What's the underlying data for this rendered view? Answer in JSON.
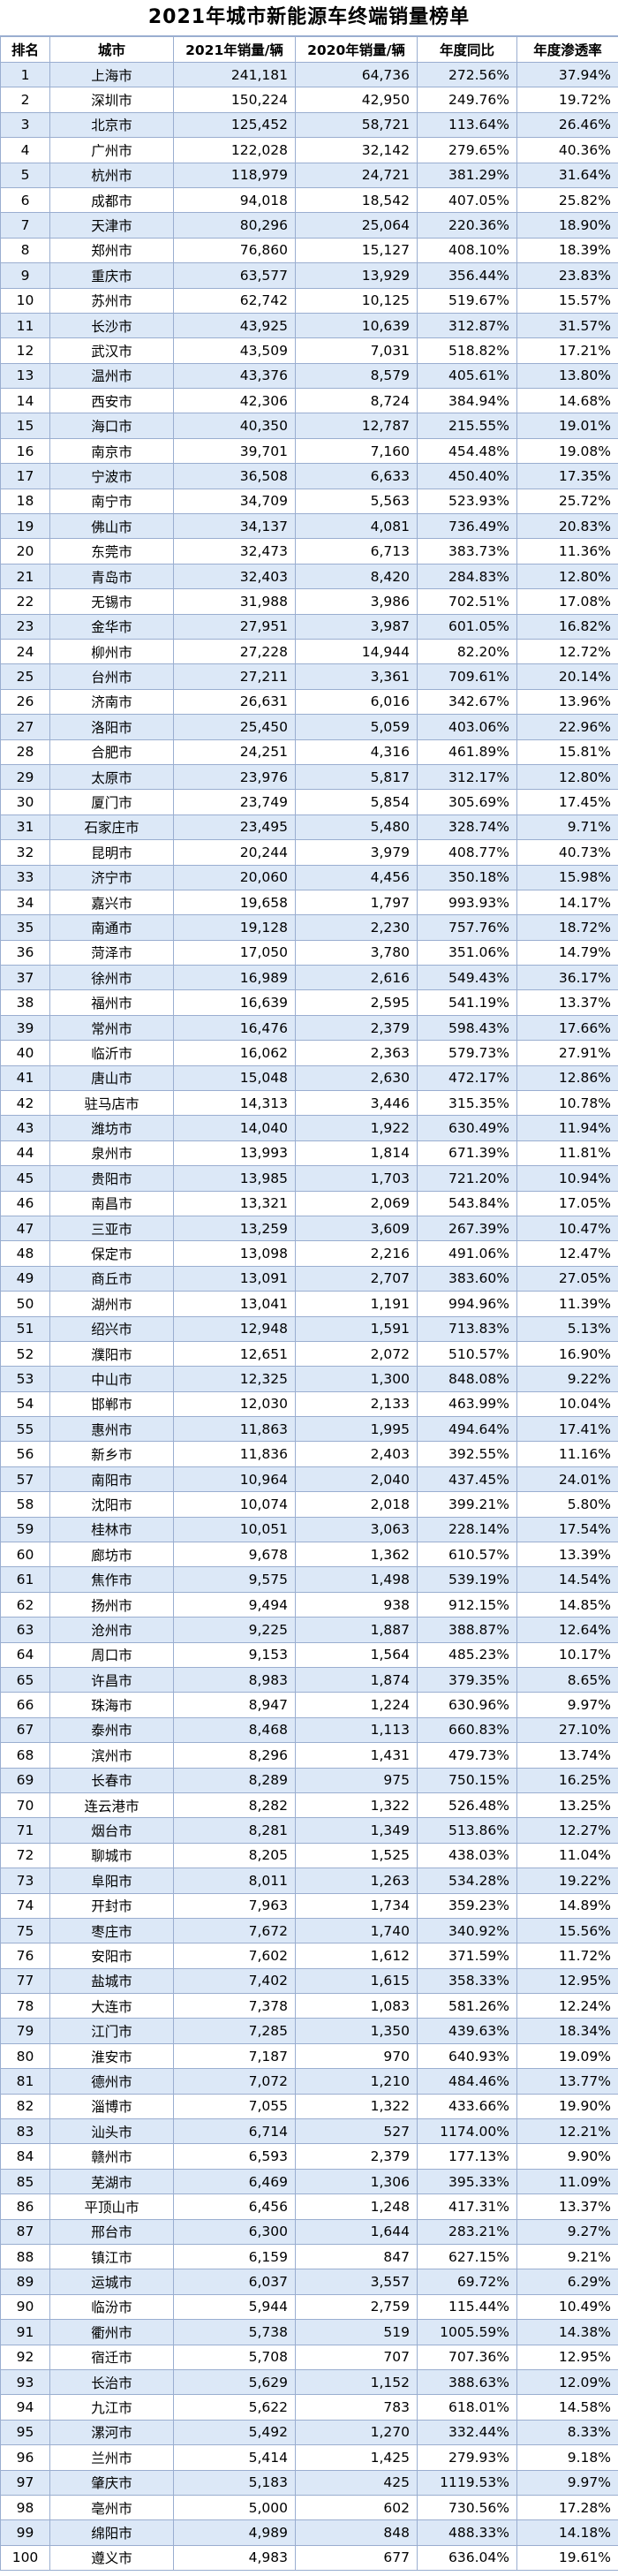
{
  "title": "2021年城市新能源车终端销量榜单",
  "headers": [
    "排名",
    "城市",
    "2021年销量/辆",
    "2020年销量/辆",
    "年度同比",
    "年度渗透率"
  ],
  "rows": [
    [
      "1",
      "上海市",
      "241,181",
      "64,736",
      "272.56%",
      "37.94%"
    ],
    [
      "2",
      "深圳市",
      "150,224",
      "42,950",
      "249.76%",
      "19.72%"
    ],
    [
      "3",
      "北京市",
      "125,452",
      "58,721",
      "113.64%",
      "26.46%"
    ],
    [
      "4",
      "广州市",
      "122,028",
      "32,142",
      "279.65%",
      "40.36%"
    ],
    [
      "5",
      "杭州市",
      "118,979",
      "24,721",
      "381.29%",
      "31.64%"
    ],
    [
      "6",
      "成都市",
      "94,018",
      "18,542",
      "407.05%",
      "25.82%"
    ],
    [
      "7",
      "天津市",
      "80,296",
      "25,064",
      "220.36%",
      "18.90%"
    ],
    [
      "8",
      "郑州市",
      "76,860",
      "15,127",
      "408.10%",
      "18.39%"
    ],
    [
      "9",
      "重庆市",
      "63,577",
      "13,929",
      "356.44%",
      "23.83%"
    ],
    [
      "10",
      "苏州市",
      "62,742",
      "10,125",
      "519.67%",
      "15.57%"
    ],
    [
      "11",
      "长沙市",
      "43,925",
      "10,639",
      "312.87%",
      "31.57%"
    ],
    [
      "12",
      "武汉市",
      "43,509",
      "7,031",
      "518.82%",
      "17.21%"
    ],
    [
      "13",
      "温州市",
      "43,376",
      "8,579",
      "405.61%",
      "13.80%"
    ],
    [
      "14",
      "西安市",
      "42,306",
      "8,724",
      "384.94%",
      "14.68%"
    ],
    [
      "15",
      "海口市",
      "40,350",
      "12,787",
      "215.55%",
      "19.01%"
    ],
    [
      "16",
      "南京市",
      "39,701",
      "7,160",
      "454.48%",
      "19.08%"
    ],
    [
      "17",
      "宁波市",
      "36,508",
      "6,633",
      "450.40%",
      "17.35%"
    ],
    [
      "18",
      "南宁市",
      "34,709",
      "5,563",
      "523.93%",
      "25.72%"
    ],
    [
      "19",
      "佛山市",
      "34,137",
      "4,081",
      "736.49%",
      "20.83%"
    ],
    [
      "20",
      "东莞市",
      "32,473",
      "6,713",
      "383.73%",
      "11.36%"
    ],
    [
      "21",
      "青岛市",
      "32,403",
      "8,420",
      "284.83%",
      "12.80%"
    ],
    [
      "22",
      "无锡市",
      "31,988",
      "3,986",
      "702.51%",
      "17.08%"
    ],
    [
      "23",
      "金华市",
      "27,951",
      "3,987",
      "601.05%",
      "16.82%"
    ],
    [
      "24",
      "柳州市",
      "27,228",
      "14,944",
      "82.20%",
      "12.72%"
    ],
    [
      "25",
      "台州市",
      "27,211",
      "3,361",
      "709.61%",
      "20.14%"
    ],
    [
      "26",
      "济南市",
      "26,631",
      "6,016",
      "342.67%",
      "13.96%"
    ],
    [
      "27",
      "洛阳市",
      "25,450",
      "5,059",
      "403.06%",
      "22.96%"
    ],
    [
      "28",
      "合肥市",
      "24,251",
      "4,316",
      "461.89%",
      "15.81%"
    ],
    [
      "29",
      "太原市",
      "23,976",
      "5,817",
      "312.17%",
      "12.80%"
    ],
    [
      "30",
      "厦门市",
      "23,749",
      "5,854",
      "305.69%",
      "17.45%"
    ],
    [
      "31",
      "石家庄市",
      "23,495",
      "5,480",
      "328.74%",
      "9.71%"
    ],
    [
      "32",
      "昆明市",
      "20,244",
      "3,979",
      "408.77%",
      "40.73%"
    ],
    [
      "33",
      "济宁市",
      "20,060",
      "4,456",
      "350.18%",
      "15.98%"
    ],
    [
      "34",
      "嘉兴市",
      "19,658",
      "1,797",
      "993.93%",
      "14.17%"
    ],
    [
      "35",
      "南通市",
      "19,128",
      "2,230",
      "757.76%",
      "18.72%"
    ],
    [
      "36",
      "菏泽市",
      "17,050",
      "3,780",
      "351.06%",
      "14.79%"
    ],
    [
      "37",
      "徐州市",
      "16,989",
      "2,616",
      "549.43%",
      "36.17%"
    ],
    [
      "38",
      "福州市",
      "16,639",
      "2,595",
      "541.19%",
      "13.37%"
    ],
    [
      "39",
      "常州市",
      "16,476",
      "2,379",
      "598.43%",
      "17.66%"
    ],
    [
      "40",
      "临沂市",
      "16,062",
      "2,363",
      "579.73%",
      "27.91%"
    ],
    [
      "41",
      "唐山市",
      "15,048",
      "2,630",
      "472.17%",
      "12.86%"
    ],
    [
      "42",
      "驻马店市",
      "14,313",
      "3,446",
      "315.35%",
      "10.78%"
    ],
    [
      "43",
      "潍坊市",
      "14,040",
      "1,922",
      "630.49%",
      "11.94%"
    ],
    [
      "44",
      "泉州市",
      "13,993",
      "1,814",
      "671.39%",
      "11.81%"
    ],
    [
      "45",
      "贵阳市",
      "13,985",
      "1,703",
      "721.20%",
      "10.94%"
    ],
    [
      "46",
      "南昌市",
      "13,321",
      "2,069",
      "543.84%",
      "17.05%"
    ],
    [
      "47",
      "三亚市",
      "13,259",
      "3,609",
      "267.39%",
      "10.47%"
    ],
    [
      "48",
      "保定市",
      "13,098",
      "2,216",
      "491.06%",
      "12.47%"
    ],
    [
      "49",
      "商丘市",
      "13,091",
      "2,707",
      "383.60%",
      "27.05%"
    ],
    [
      "50",
      "湖州市",
      "13,041",
      "1,191",
      "994.96%",
      "11.39%"
    ],
    [
      "51",
      "绍兴市",
      "12,948",
      "1,591",
      "713.83%",
      "5.13%"
    ],
    [
      "52",
      "濮阳市",
      "12,651",
      "2,072",
      "510.57%",
      "16.90%"
    ],
    [
      "53",
      "中山市",
      "12,325",
      "1,300",
      "848.08%",
      "9.22%"
    ],
    [
      "54",
      "邯郸市",
      "12,030",
      "2,133",
      "463.99%",
      "10.04%"
    ],
    [
      "55",
      "惠州市",
      "11,863",
      "1,995",
      "494.64%",
      "17.41%"
    ],
    [
      "56",
      "新乡市",
      "11,836",
      "2,403",
      "392.55%",
      "11.16%"
    ],
    [
      "57",
      "南阳市",
      "10,964",
      "2,040",
      "437.45%",
      "24.01%"
    ],
    [
      "58",
      "沈阳市",
      "10,074",
      "2,018",
      "399.21%",
      "5.80%"
    ],
    [
      "59",
      "桂林市",
      "10,051",
      "3,063",
      "228.14%",
      "17.54%"
    ],
    [
      "60",
      "廊坊市",
      "9,678",
      "1,362",
      "610.57%",
      "13.39%"
    ],
    [
      "61",
      "焦作市",
      "9,575",
      "1,498",
      "539.19%",
      "14.54%"
    ],
    [
      "62",
      "扬州市",
      "9,494",
      "938",
      "912.15%",
      "14.85%"
    ],
    [
      "63",
      "沧州市",
      "9,225",
      "1,887",
      "388.87%",
      "12.64%"
    ],
    [
      "64",
      "周口市",
      "9,153",
      "1,564",
      "485.23%",
      "10.17%"
    ],
    [
      "65",
      "许昌市",
      "8,983",
      "1,874",
      "379.35%",
      "8.65%"
    ],
    [
      "66",
      "珠海市",
      "8,947",
      "1,224",
      "630.96%",
      "9.97%"
    ],
    [
      "67",
      "泰州市",
      "8,468",
      "1,113",
      "660.83%",
      "27.10%"
    ],
    [
      "68",
      "滨州市",
      "8,296",
      "1,431",
      "479.73%",
      "13.74%"
    ],
    [
      "69",
      "长春市",
      "8,289",
      "975",
      "750.15%",
      "16.25%"
    ],
    [
      "70",
      "连云港市",
      "8,282",
      "1,322",
      "526.48%",
      "13.25%"
    ],
    [
      "71",
      "烟台市",
      "8,281",
      "1,349",
      "513.86%",
      "12.27%"
    ],
    [
      "72",
      "聊城市",
      "8,205",
      "1,525",
      "438.03%",
      "11.04%"
    ],
    [
      "73",
      "阜阳市",
      "8,011",
      "1,263",
      "534.28%",
      "19.22%"
    ],
    [
      "74",
      "开封市",
      "7,963",
      "1,734",
      "359.23%",
      "14.89%"
    ],
    [
      "75",
      "枣庄市",
      "7,672",
      "1,740",
      "340.92%",
      "15.56%"
    ],
    [
      "76",
      "安阳市",
      "7,602",
      "1,612",
      "371.59%",
      "11.72%"
    ],
    [
      "77",
      "盐城市",
      "7,402",
      "1,615",
      "358.33%",
      "12.95%"
    ],
    [
      "78",
      "大连市",
      "7,378",
      "1,083",
      "581.26%",
      "12.24%"
    ],
    [
      "79",
      "江门市",
      "7,285",
      "1,350",
      "439.63%",
      "18.34%"
    ],
    [
      "80",
      "淮安市",
      "7,187",
      "970",
      "640.93%",
      "19.09%"
    ],
    [
      "81",
      "德州市",
      "7,072",
      "1,210",
      "484.46%",
      "13.77%"
    ],
    [
      "82",
      "淄博市",
      "7,055",
      "1,322",
      "433.66%",
      "19.90%"
    ],
    [
      "83",
      "汕头市",
      "6,714",
      "527",
      "1174.00%",
      "12.21%"
    ],
    [
      "84",
      "赣州市",
      "6,593",
      "2,379",
      "177.13%",
      "9.90%"
    ],
    [
      "85",
      "芜湖市",
      "6,469",
      "1,306",
      "395.33%",
      "11.09%"
    ],
    [
      "86",
      "平顶山市",
      "6,456",
      "1,248",
      "417.31%",
      "13.37%"
    ],
    [
      "87",
      "邢台市",
      "6,300",
      "1,644",
      "283.21%",
      "9.27%"
    ],
    [
      "88",
      "镇江市",
      "6,159",
      "847",
      "627.15%",
      "9.21%"
    ],
    [
      "89",
      "运城市",
      "6,037",
      "3,557",
      "69.72%",
      "6.29%"
    ],
    [
      "90",
      "临汾市",
      "5,944",
      "2,759",
      "115.44%",
      "10.49%"
    ],
    [
      "91",
      "衢州市",
      "5,738",
      "519",
      "1005.59%",
      "14.38%"
    ],
    [
      "92",
      "宿迁市",
      "5,708",
      "707",
      "707.36%",
      "12.95%"
    ],
    [
      "93",
      "长治市",
      "5,629",
      "1,152",
      "388.63%",
      "12.09%"
    ],
    [
      "94",
      "九江市",
      "5,622",
      "783",
      "618.01%",
      "14.58%"
    ],
    [
      "95",
      "漯河市",
      "5,492",
      "1,270",
      "332.44%",
      "8.33%"
    ],
    [
      "96",
      "兰州市",
      "5,414",
      "1,425",
      "279.93%",
      "9.18%"
    ],
    [
      "97",
      "肇庆市",
      "5,183",
      "425",
      "1119.53%",
      "9.97%"
    ],
    [
      "98",
      "亳州市",
      "5,000",
      "602",
      "730.56%",
      "17.28%"
    ],
    [
      "99",
      "绵阳市",
      "4,989",
      "848",
      "488.33%",
      "14.18%"
    ],
    [
      "100",
      "遵义市",
      "4,983",
      "677",
      "636.04%",
      "19.61%"
    ]
  ]
}
